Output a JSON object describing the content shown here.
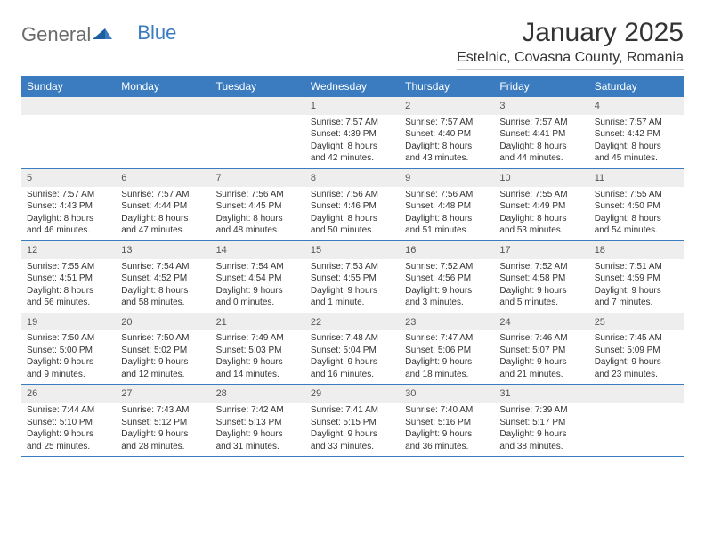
{
  "brand": {
    "part1": "General",
    "part2": "Blue"
  },
  "title": "January 2025",
  "location": "Estelnic, Covasna County, Romania",
  "colors": {
    "header_bg": "#3a7cbf",
    "header_text": "#ffffff",
    "daynum_bg": "#eeeeee",
    "border": "#3a7cbf",
    "body_text": "#333333",
    "logo_gray": "#6b6b6b"
  },
  "weekdays": [
    "Sunday",
    "Monday",
    "Tuesday",
    "Wednesday",
    "Thursday",
    "Friday",
    "Saturday"
  ],
  "weeks": [
    [
      {
        "n": "",
        "sr": "",
        "ss": "",
        "d1": "",
        "d2": ""
      },
      {
        "n": "",
        "sr": "",
        "ss": "",
        "d1": "",
        "d2": ""
      },
      {
        "n": "",
        "sr": "",
        "ss": "",
        "d1": "",
        "d2": ""
      },
      {
        "n": "1",
        "sr": "Sunrise: 7:57 AM",
        "ss": "Sunset: 4:39 PM",
        "d1": "Daylight: 8 hours",
        "d2": "and 42 minutes."
      },
      {
        "n": "2",
        "sr": "Sunrise: 7:57 AM",
        "ss": "Sunset: 4:40 PM",
        "d1": "Daylight: 8 hours",
        "d2": "and 43 minutes."
      },
      {
        "n": "3",
        "sr": "Sunrise: 7:57 AM",
        "ss": "Sunset: 4:41 PM",
        "d1": "Daylight: 8 hours",
        "d2": "and 44 minutes."
      },
      {
        "n": "4",
        "sr": "Sunrise: 7:57 AM",
        "ss": "Sunset: 4:42 PM",
        "d1": "Daylight: 8 hours",
        "d2": "and 45 minutes."
      }
    ],
    [
      {
        "n": "5",
        "sr": "Sunrise: 7:57 AM",
        "ss": "Sunset: 4:43 PM",
        "d1": "Daylight: 8 hours",
        "d2": "and 46 minutes."
      },
      {
        "n": "6",
        "sr": "Sunrise: 7:57 AM",
        "ss": "Sunset: 4:44 PM",
        "d1": "Daylight: 8 hours",
        "d2": "and 47 minutes."
      },
      {
        "n": "7",
        "sr": "Sunrise: 7:56 AM",
        "ss": "Sunset: 4:45 PM",
        "d1": "Daylight: 8 hours",
        "d2": "and 48 minutes."
      },
      {
        "n": "8",
        "sr": "Sunrise: 7:56 AM",
        "ss": "Sunset: 4:46 PM",
        "d1": "Daylight: 8 hours",
        "d2": "and 50 minutes."
      },
      {
        "n": "9",
        "sr": "Sunrise: 7:56 AM",
        "ss": "Sunset: 4:48 PM",
        "d1": "Daylight: 8 hours",
        "d2": "and 51 minutes."
      },
      {
        "n": "10",
        "sr": "Sunrise: 7:55 AM",
        "ss": "Sunset: 4:49 PM",
        "d1": "Daylight: 8 hours",
        "d2": "and 53 minutes."
      },
      {
        "n": "11",
        "sr": "Sunrise: 7:55 AM",
        "ss": "Sunset: 4:50 PM",
        "d1": "Daylight: 8 hours",
        "d2": "and 54 minutes."
      }
    ],
    [
      {
        "n": "12",
        "sr": "Sunrise: 7:55 AM",
        "ss": "Sunset: 4:51 PM",
        "d1": "Daylight: 8 hours",
        "d2": "and 56 minutes."
      },
      {
        "n": "13",
        "sr": "Sunrise: 7:54 AM",
        "ss": "Sunset: 4:52 PM",
        "d1": "Daylight: 8 hours",
        "d2": "and 58 minutes."
      },
      {
        "n": "14",
        "sr": "Sunrise: 7:54 AM",
        "ss": "Sunset: 4:54 PM",
        "d1": "Daylight: 9 hours",
        "d2": "and 0 minutes."
      },
      {
        "n": "15",
        "sr": "Sunrise: 7:53 AM",
        "ss": "Sunset: 4:55 PM",
        "d1": "Daylight: 9 hours",
        "d2": "and 1 minute."
      },
      {
        "n": "16",
        "sr": "Sunrise: 7:52 AM",
        "ss": "Sunset: 4:56 PM",
        "d1": "Daylight: 9 hours",
        "d2": "and 3 minutes."
      },
      {
        "n": "17",
        "sr": "Sunrise: 7:52 AM",
        "ss": "Sunset: 4:58 PM",
        "d1": "Daylight: 9 hours",
        "d2": "and 5 minutes."
      },
      {
        "n": "18",
        "sr": "Sunrise: 7:51 AM",
        "ss": "Sunset: 4:59 PM",
        "d1": "Daylight: 9 hours",
        "d2": "and 7 minutes."
      }
    ],
    [
      {
        "n": "19",
        "sr": "Sunrise: 7:50 AM",
        "ss": "Sunset: 5:00 PM",
        "d1": "Daylight: 9 hours",
        "d2": "and 9 minutes."
      },
      {
        "n": "20",
        "sr": "Sunrise: 7:50 AM",
        "ss": "Sunset: 5:02 PM",
        "d1": "Daylight: 9 hours",
        "d2": "and 12 minutes."
      },
      {
        "n": "21",
        "sr": "Sunrise: 7:49 AM",
        "ss": "Sunset: 5:03 PM",
        "d1": "Daylight: 9 hours",
        "d2": "and 14 minutes."
      },
      {
        "n": "22",
        "sr": "Sunrise: 7:48 AM",
        "ss": "Sunset: 5:04 PM",
        "d1": "Daylight: 9 hours",
        "d2": "and 16 minutes."
      },
      {
        "n": "23",
        "sr": "Sunrise: 7:47 AM",
        "ss": "Sunset: 5:06 PM",
        "d1": "Daylight: 9 hours",
        "d2": "and 18 minutes."
      },
      {
        "n": "24",
        "sr": "Sunrise: 7:46 AM",
        "ss": "Sunset: 5:07 PM",
        "d1": "Daylight: 9 hours",
        "d2": "and 21 minutes."
      },
      {
        "n": "25",
        "sr": "Sunrise: 7:45 AM",
        "ss": "Sunset: 5:09 PM",
        "d1": "Daylight: 9 hours",
        "d2": "and 23 minutes."
      }
    ],
    [
      {
        "n": "26",
        "sr": "Sunrise: 7:44 AM",
        "ss": "Sunset: 5:10 PM",
        "d1": "Daylight: 9 hours",
        "d2": "and 25 minutes."
      },
      {
        "n": "27",
        "sr": "Sunrise: 7:43 AM",
        "ss": "Sunset: 5:12 PM",
        "d1": "Daylight: 9 hours",
        "d2": "and 28 minutes."
      },
      {
        "n": "28",
        "sr": "Sunrise: 7:42 AM",
        "ss": "Sunset: 5:13 PM",
        "d1": "Daylight: 9 hours",
        "d2": "and 31 minutes."
      },
      {
        "n": "29",
        "sr": "Sunrise: 7:41 AM",
        "ss": "Sunset: 5:15 PM",
        "d1": "Daylight: 9 hours",
        "d2": "and 33 minutes."
      },
      {
        "n": "30",
        "sr": "Sunrise: 7:40 AM",
        "ss": "Sunset: 5:16 PM",
        "d1": "Daylight: 9 hours",
        "d2": "and 36 minutes."
      },
      {
        "n": "31",
        "sr": "Sunrise: 7:39 AM",
        "ss": "Sunset: 5:17 PM",
        "d1": "Daylight: 9 hours",
        "d2": "and 38 minutes."
      },
      {
        "n": "",
        "sr": "",
        "ss": "",
        "d1": "",
        "d2": ""
      }
    ]
  ]
}
